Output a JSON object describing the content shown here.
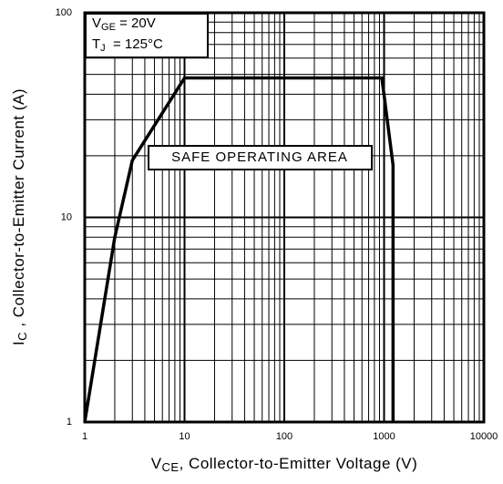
{
  "chart_data": {
    "type": "line",
    "xlabel": {
      "symbol": "V",
      "sub": "CE",
      "text": ", Collector-to-Emitter Voltage (V)"
    },
    "ylabel": {
      "symbol": "I",
      "sub": "C",
      "text": " , Collector-to-Emitter Current (A)"
    },
    "annotations": [
      {
        "symbol": "V",
        "sub": "GE",
        "text": " = 20V"
      },
      {
        "symbol": "T",
        "sub": "J",
        "text": "  = 125°C"
      },
      {
        "text": "SAFE OPERATING AREA"
      }
    ],
    "xscale": "log",
    "yscale": "log",
    "xlim": [
      1,
      10000
    ],
    "ylim": [
      1,
      100
    ],
    "xticks": [
      1,
      10,
      100,
      1000,
      10000
    ],
    "yticks": [
      1,
      10,
      100
    ],
    "grid": true,
    "minor_grid": true,
    "series": [
      {
        "color": "#000000",
        "x": [
          1,
          2,
          3,
          10,
          950,
          1230,
          1230
        ],
        "values": [
          1,
          8,
          19,
          48,
          48,
          18,
          1
        ]
      }
    ]
  }
}
